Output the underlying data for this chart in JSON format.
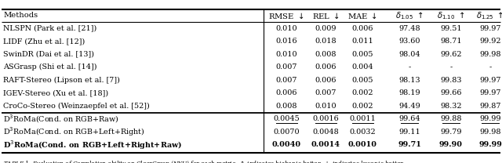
{
  "rows_group1": [
    [
      "NLSPN (Park et al. [21])",
      "0.010",
      "0.009",
      "0.006",
      "97.48",
      "99.51",
      "99.97"
    ],
    [
      "LIDF (Zhu et al. [12])",
      "0.016",
      "0.018",
      "0.011",
      "93.60",
      "98.71",
      "99.92"
    ],
    [
      "SwinDR (Dai et al. [13])",
      "0.010",
      "0.008",
      "0.005",
      "98.04",
      "99.62",
      "99.98"
    ],
    [
      "ASGrasp (Shi et al. [14])",
      "0.007",
      "0.006",
      "0.004",
      "-",
      "-",
      "-"
    ],
    [
      "RAFT-Stereo (Lipson et al. [7])",
      "0.007",
      "0.006",
      "0.005",
      "98.13",
      "99.83",
      "99.97"
    ],
    [
      "IGEV-Stereo (Xu et al. [18])",
      "0.006",
      "0.007",
      "0.002",
      "98.19",
      "99.66",
      "99.97"
    ],
    [
      "CroCo-Stereo (Weinzaepfel et al. [52])",
      "0.008",
      "0.010",
      "0.002",
      "94.49",
      "98.32",
      "99.87"
    ]
  ],
  "rows_group2": [
    [
      "D$^3$RoMa(Cond. on RGB+Raw)",
      "0.0045",
      "0.0016",
      "0.0011",
      "99.64",
      "99.88",
      "99.99"
    ],
    [
      "D$^3$RoMa(Cond. on RGB+Left+Right)",
      "0.0070",
      "0.0048",
      "0.0032",
      "99.11",
      "99.79",
      "99.98"
    ],
    [
      "D$^3$RoMa(Cond. on RGB+Left+Right+Raw)",
      "0.0040",
      "0.0014",
      "0.0010",
      "99.71",
      "99.90",
      "99.99"
    ]
  ],
  "underline_row": 0,
  "bold_row": 2,
  "figsize": [
    6.4,
    2.08
  ],
  "dpi": 100,
  "fontsize": 7.2,
  "bg_color": "#ffffff"
}
